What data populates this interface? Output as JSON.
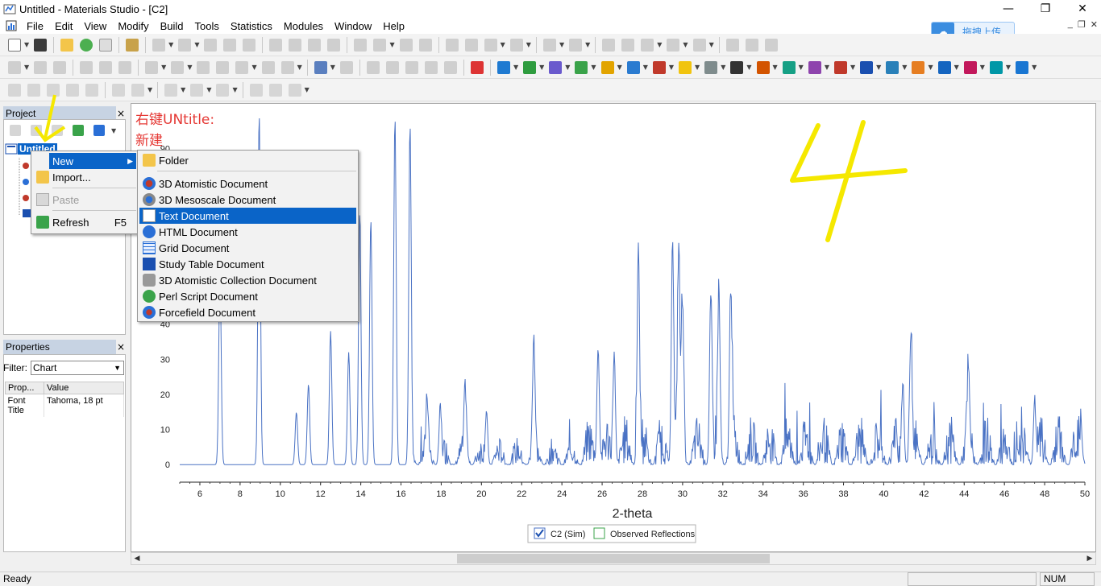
{
  "window": {
    "title": "Untitled - Materials Studio - [C2]",
    "controls": [
      "—",
      "❐",
      "✕"
    ]
  },
  "menubar": {
    "items": [
      "File",
      "Edit",
      "View",
      "Modify",
      "Build",
      "Tools",
      "Statistics",
      "Modules",
      "Window",
      "Help"
    ],
    "mdi_controls": [
      "_",
      "❐",
      "✕"
    ]
  },
  "upload_button": {
    "label": "拖拽上传"
  },
  "project_panel": {
    "title": "Project",
    "close": "×",
    "root_label": "Untitled"
  },
  "properties_panel": {
    "title": "Properties",
    "close": "×",
    "filter_label": "Filter:",
    "filter_value": "Chart",
    "columns": [
      "Prop...",
      "Value"
    ],
    "rows": [
      {
        "prop": "Font Title",
        "value": "Tahoma, 18 pt"
      }
    ]
  },
  "context_menu": {
    "items": [
      {
        "label": "New",
        "submenu": true,
        "selected": true,
        "icon": "blank-icon"
      },
      {
        "label": "Import...",
        "icon": "import-folder-icon"
      },
      {
        "label": "Paste",
        "disabled": true,
        "icon": "paste-icon"
      },
      {
        "label": "Refresh",
        "shortcut": "F5",
        "icon": "refresh-icon"
      }
    ]
  },
  "new_submenu": {
    "items": [
      {
        "label": "Folder",
        "icon": "folder-icon"
      },
      {
        "label": "3D Atomistic Document",
        "icon": "atomistic-icon"
      },
      {
        "label": "3D Mesoscale Document",
        "icon": "mesoscale-icon"
      },
      {
        "label": "Text Document",
        "icon": "text-doc-icon",
        "selected": true
      },
      {
        "label": "HTML Document",
        "icon": "html-doc-icon"
      },
      {
        "label": "Grid Document",
        "icon": "grid-doc-icon"
      },
      {
        "label": "Study Table Document",
        "icon": "study-table-icon"
      },
      {
        "label": "3D Atomistic Collection Document",
        "icon": "collection-icon"
      },
      {
        "label": "Perl Script Document",
        "icon": "perl-script-icon"
      },
      {
        "label": "Forcefield Document",
        "icon": "forcefield-icon"
      }
    ]
  },
  "annotations": {
    "note_line1": "右键UNtitle:",
    "note_line2": "新建",
    "big_number": "4"
  },
  "status": {
    "ready": "Ready",
    "num": "NUM"
  },
  "colors": {
    "accent": "#0a64c8",
    "series": "#4a72c4",
    "annotation_red": "#e53935",
    "annotation_yellow": "#f5e800"
  },
  "chart_data": {
    "type": "line",
    "xlabel": "2-theta",
    "xlim": [
      5,
      50
    ],
    "ylim": [
      -5,
      100
    ],
    "x_ticks": [
      6,
      8,
      10,
      12,
      14,
      16,
      18,
      20,
      22,
      24,
      26,
      28,
      30,
      32,
      34,
      36,
      38,
      40,
      42,
      44,
      46,
      48,
      50
    ],
    "y_ticks": [
      0,
      10,
      20,
      30,
      40,
      90
    ],
    "legend": [
      {
        "name": "C2 (Sim)",
        "checked": true
      },
      {
        "name": "Observed Reflections",
        "checked": false
      }
    ],
    "series": [
      {
        "name": "C2 (Sim)",
        "peaks": [
          [
            7.0,
            55
          ],
          [
            8.95,
            100
          ],
          [
            10.8,
            15
          ],
          [
            11.4,
            23
          ],
          [
            12.5,
            38
          ],
          [
            13.4,
            32
          ],
          [
            13.95,
            72
          ],
          [
            14.5,
            70
          ],
          [
            15.7,
            99
          ],
          [
            16.45,
            97
          ],
          [
            17.3,
            17
          ],
          [
            17.95,
            14
          ],
          [
            19.2,
            19
          ],
          [
            20.25,
            14
          ],
          [
            22.6,
            34
          ],
          [
            25.8,
            33
          ],
          [
            26.6,
            31
          ],
          [
            27.8,
            58
          ],
          [
            29.5,
            64
          ],
          [
            29.8,
            56
          ],
          [
            30.0,
            45
          ],
          [
            31.4,
            44
          ],
          [
            31.8,
            45
          ],
          [
            32.4,
            49
          ],
          [
            41.35,
            36
          ],
          [
            40.95,
            23
          ],
          [
            44.2,
            19
          ],
          [
            47.5,
            16
          ],
          [
            49.8,
            8
          ]
        ],
        "baseline_noise": 4
      }
    ]
  }
}
